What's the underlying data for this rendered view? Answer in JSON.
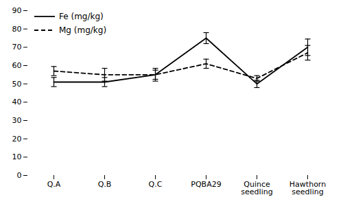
{
  "chart_data": {
    "type": "line",
    "categories": [
      "Q.A",
      "Q.B",
      "Q.C",
      "PQBA29",
      "Quince\nseedling",
      "Hawthorn\nseedling"
    ],
    "series": [
      {
        "name": "Fe (mg/kg)",
        "color": "#000000",
        "line_style": "solid",
        "values": [
          51,
          51,
          55,
          75,
          50,
          70
        ],
        "errors": [
          2.5,
          2.5,
          3.5,
          3.0,
          2.0,
          4.5
        ]
      },
      {
        "name": "Mg (mg/kg)",
        "color": "#000000",
        "line_style": "dashed",
        "values": [
          57,
          55,
          55,
          61,
          53,
          67
        ],
        "errors": [
          2.5,
          3.5,
          2.5,
          2.5,
          1.5,
          4.0
        ]
      }
    ],
    "ylim": [
      0,
      90
    ],
    "yticks": [
      0,
      10,
      20,
      30,
      40,
      50,
      60,
      70,
      80,
      90
    ],
    "grid": false,
    "legend": "upper left"
  }
}
